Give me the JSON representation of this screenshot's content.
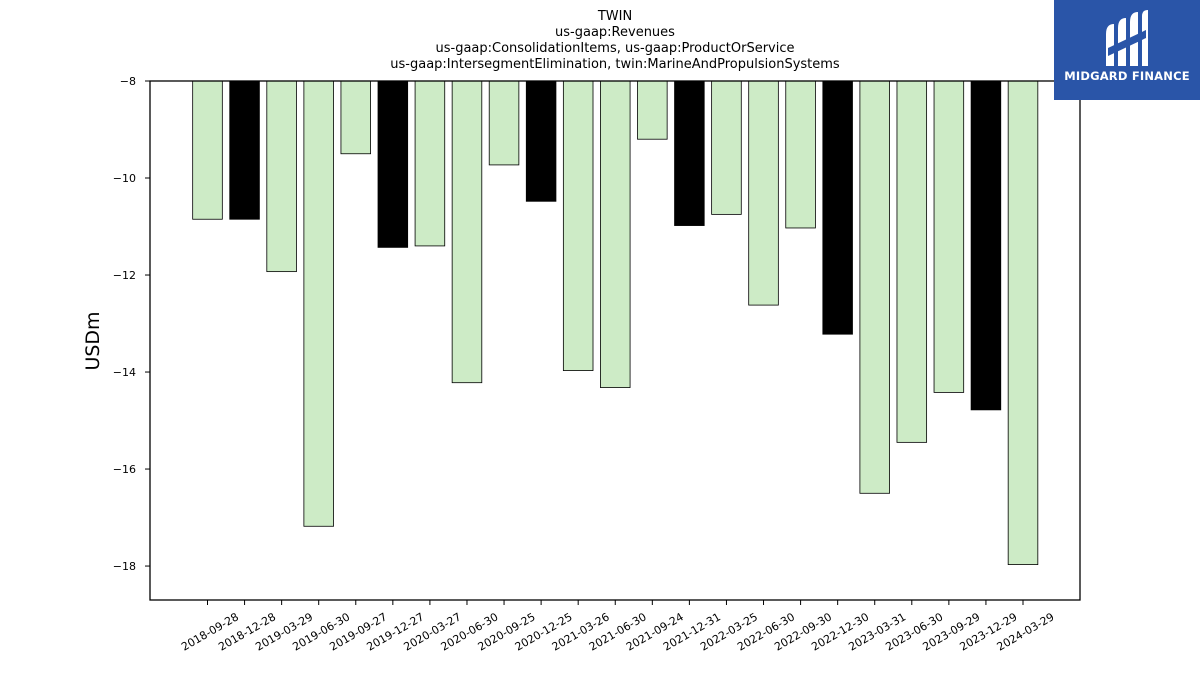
{
  "chart_data": {
    "type": "bar",
    "title": [
      "TWIN",
      "us-gaap:Revenues",
      "us-gaap:ConsolidationItems, us-gaap:ProductOrService",
      "us-gaap:IntersegmentElimination, twin:MarineAndPropulsionSystems"
    ],
    "xlabel": "",
    "ylabel": "USDm",
    "ylim": [
      -18.7,
      -8
    ],
    "yticks": [
      -8,
      -10,
      -12,
      -14,
      -16,
      -18
    ],
    "grid": false,
    "categories": [
      "2018-09-28",
      "2018-12-28",
      "2019-03-29",
      "2019-06-30",
      "2019-09-27",
      "2019-12-27",
      "2020-03-27",
      "2020-06-30",
      "2020-09-25",
      "2020-12-25",
      "2021-03-26",
      "2021-06-30",
      "2021-09-24",
      "2021-12-31",
      "2022-03-25",
      "2022-06-30",
      "2022-09-30",
      "2022-12-30",
      "2023-03-31",
      "2023-06-30",
      "2023-09-29",
      "2023-12-29",
      "2024-03-29"
    ],
    "values": [
      -10.85,
      -10.85,
      -11.93,
      -17.18,
      -9.5,
      -11.43,
      -11.4,
      -14.22,
      -9.73,
      -10.48,
      -13.97,
      -14.32,
      -9.2,
      -10.98,
      -10.75,
      -12.62,
      -11.03,
      -13.22,
      -16.5,
      -15.45,
      -14.42,
      -14.78,
      -17.97
    ],
    "bar_colors": [
      "#cdebc6",
      "#000000",
      "#cdebc6",
      "#cdebc6",
      "#cdebc6",
      "#000000",
      "#cdebc6",
      "#cdebc6",
      "#cdebc6",
      "#000000",
      "#cdebc6",
      "#cdebc6",
      "#cdebc6",
      "#000000",
      "#cdebc6",
      "#cdebc6",
      "#cdebc6",
      "#000000",
      "#cdebc6",
      "#cdebc6",
      "#cdebc6",
      "#000000",
      "#cdebc6"
    ]
  },
  "logo": {
    "text": "MIDGARD FINANCE",
    "background": "#2a55a8"
  }
}
